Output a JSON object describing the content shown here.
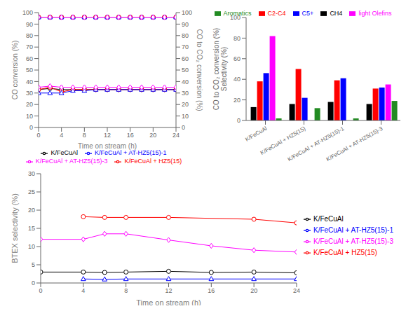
{
  "chart_data": [
    {
      "type": "line",
      "x_label": "Time on stream (h)",
      "y_label": "CO conversion (%)",
      "y2_label": "CO to CO₂ conversion (%)",
      "x": [
        0,
        2,
        4,
        6,
        8,
        10,
        12,
        14,
        16,
        18,
        20,
        22,
        24
      ],
      "xlim": [
        0,
        24
      ],
      "xticks": [
        0,
        4,
        8,
        12,
        16,
        20,
        24
      ],
      "ylim": [
        0,
        100
      ],
      "yticks": [
        0,
        10,
        20,
        30,
        40,
        50,
        60,
        70,
        80,
        90,
        100
      ],
      "y2lim": [
        0,
        100
      ],
      "y2ticks": [
        0,
        10,
        20,
        30,
        40,
        50,
        60,
        70,
        80,
        90,
        100
      ],
      "series": [
        {
          "name": "K/FeCuAl",
          "color": "black",
          "marker": "circle",
          "values": [
            33,
            34,
            33,
            33,
            33,
            33,
            33,
            33,
            33,
            33,
            33,
            33,
            33
          ]
        },
        {
          "name": "K/FeCuAl + HZ5(15)",
          "color": "red",
          "marker": "circle",
          "values": [
            33,
            35,
            31,
            33,
            33,
            33,
            33,
            33,
            33,
            33,
            33,
            33,
            33
          ]
        },
        {
          "name": "K/FeCuAl + AT-HZ5(15)-1",
          "color": "blue",
          "marker": "triangle",
          "values": [
            30,
            30,
            30,
            32,
            32,
            33,
            33,
            33,
            33,
            33,
            33,
            33,
            33
          ]
        },
        {
          "name": "K/FeCuAl + AT-HZ5(15)-3",
          "color": "magenta",
          "marker": "diamond",
          "values": [
            35,
            36,
            35,
            35,
            35,
            35,
            35,
            35,
            35,
            35,
            35,
            35,
            35
          ]
        },
        {
          "color": "black",
          "marker": "circle",
          "axis": "y2",
          "values": [
            96,
            96,
            96,
            96,
            96,
            96,
            96,
            96,
            96,
            96,
            96,
            96,
            96
          ]
        },
        {
          "color": "red",
          "marker": "circle",
          "axis": "y2",
          "values": [
            96,
            96,
            96,
            96,
            96,
            96,
            96,
            96,
            96,
            96,
            96,
            96,
            96
          ]
        },
        {
          "color": "blue",
          "marker": "triangle",
          "axis": "y2",
          "values": [
            96,
            96,
            96,
            96,
            96,
            96,
            96,
            96,
            96,
            96,
            96,
            96,
            96
          ]
        },
        {
          "color": "magenta",
          "marker": "diamond",
          "axis": "y2",
          "values": [
            96,
            96,
            96,
            96,
            96,
            96,
            96,
            96,
            96,
            96,
            96,
            96,
            96
          ]
        }
      ]
    },
    {
      "type": "bar",
      "y_label": "CO to CO₂ conversion (%)\nSelectivity (%)",
      "categories": [
        "K/FeCuAl",
        "K/FeCuAl + HZ5(15)",
        "K/FeCuAl + AT-HZ5(15)-1",
        "K/FeCuAl + AT-HZ5(15)-3"
      ],
      "ylim": [
        0,
        100
      ],
      "yticks": [
        0,
        20,
        40,
        60,
        80,
        100
      ],
      "series": [
        {
          "name": "CH4",
          "color": "black",
          "values": [
            13,
            16,
            18,
            16
          ]
        },
        {
          "name": "C2-C4",
          "color": "red",
          "values": [
            38,
            50,
            39,
            31
          ]
        },
        {
          "name": "C5+",
          "color": "blue",
          "values": [
            46,
            22,
            41,
            32
          ]
        },
        {
          "name": "light Olefins",
          "color": "magenta",
          "values": [
            82,
            0,
            0,
            35
          ]
        },
        {
          "name": "Aromatics",
          "color": "#228B22",
          "values": [
            2,
            12,
            2,
            19
          ]
        }
      ]
    },
    {
      "type": "line",
      "x_label": "Time on stream (h)",
      "y_label": "BTEX selectivity (%)",
      "xlim": [
        0,
        24
      ],
      "xticks": [
        0,
        4,
        8,
        12,
        16,
        20,
        24
      ],
      "ylim": [
        0,
        30
      ],
      "yticks": [
        0,
        5,
        10,
        15,
        20,
        25,
        30
      ],
      "series": [
        {
          "name": "K/FeCuAl",
          "color": "black",
          "marker": "circle",
          "x": [
            0,
            4,
            6,
            8,
            12,
            16,
            20,
            24
          ],
          "values": [
            3.0,
            3.0,
            2.9,
            3.0,
            3.2,
            2.9,
            3.0,
            2.8
          ]
        },
        {
          "name": "K/FeCuAl + HZ5(15)",
          "color": "red",
          "marker": "circle",
          "x": [
            4,
            6,
            8,
            12,
            20,
            24
          ],
          "values": [
            18.2,
            18.0,
            18.0,
            18.0,
            17.5,
            16.5
          ]
        },
        {
          "name": "K/FeCuAl + AT-HZ5(15)-1",
          "color": "blue",
          "marker": "triangle",
          "x": [
            4,
            6,
            8,
            12,
            16,
            20,
            24
          ],
          "values": [
            1.1,
            1.0,
            1.1,
            1.1,
            1.1,
            1.1,
            1.1
          ]
        },
        {
          "name": "K/FeCuAl + AT-HZ5(15)-3",
          "color": "magenta",
          "marker": "diamond",
          "x": [
            0,
            4,
            6,
            8,
            12,
            16,
            20,
            24
          ],
          "values": [
            12.0,
            12.0,
            13.5,
            13.5,
            11.8,
            10.2,
            9.0,
            8.5
          ]
        }
      ]
    }
  ]
}
